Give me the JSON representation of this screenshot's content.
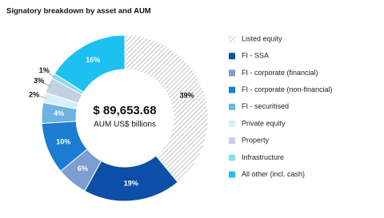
{
  "chart_data": {
    "type": "donut",
    "title": "Signatory breakdown by asset and AUM",
    "center_label": "$ 89,653.68",
    "center_sublabel": "AUM US$ billions",
    "categories": [
      "Listed equity",
      "FI - SSA",
      "FI - corporate (financial)",
      "FI - corporate (non-financial)",
      "FI - securitised",
      "Private equity",
      "Property",
      "Infrastructure",
      "All other (incl. cash)"
    ],
    "values": [
      39,
      19,
      6,
      10,
      4,
      2,
      3,
      1,
      16
    ],
    "value_labels": [
      "39%",
      "19%",
      "6%",
      "10%",
      "4%",
      "2%",
      "3%",
      "1%",
      "16%"
    ],
    "colors": [
      "#b8b8b8",
      "#0d4ea6",
      "#7d9ccf",
      "#1b7dd2",
      "#6db2e2",
      "#d6eff9",
      "#c3cfe2",
      "#8ddbf0",
      "#1cc0f1"
    ],
    "hatch": [
      true,
      false,
      false,
      false,
      false,
      false,
      false,
      false,
      false
    ],
    "legend": "right"
  }
}
